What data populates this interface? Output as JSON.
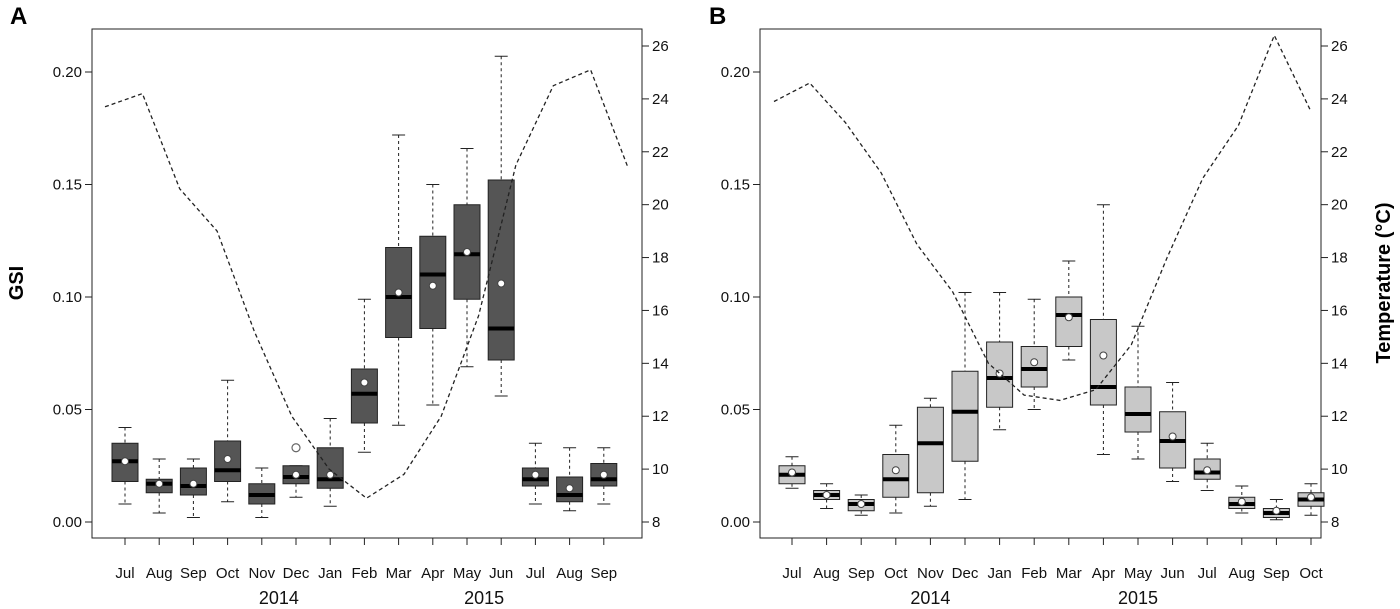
{
  "chart_data": [
    {
      "type": "box",
      "panel_label": "A",
      "ylabel": "GSI",
      "y2label": "",
      "ylim": [
        0,
        0.22
      ],
      "yticks": [
        "0.00",
        "0.05",
        "0.10",
        "0.15",
        "0.20"
      ],
      "y2lim": [
        7.3,
        26.8
      ],
      "y2ticks": [
        "8",
        "10",
        "12",
        "14",
        "16",
        "18",
        "20",
        "22",
        "24",
        "26"
      ],
      "box_color": "#555555",
      "categories": [
        "Jul",
        "Aug",
        "Sep",
        "Oct",
        "Nov",
        "Dec",
        "Jan",
        "Feb",
        "Mar",
        "Apr",
        "May",
        "Jun",
        "Jul",
        "Aug",
        "Sep"
      ],
      "years": [
        {
          "label": "2014",
          "center_index": 4.5
        },
        {
          "label": "2015",
          "center_index": 10.5
        }
      ],
      "boxes": [
        {
          "min": 0.008,
          "q1": 0.018,
          "median": 0.027,
          "q3": 0.035,
          "max": 0.042,
          "mean": 0.027
        },
        {
          "min": 0.004,
          "q1": 0.013,
          "median": 0.017,
          "q3": 0.019,
          "max": 0.028,
          "mean": 0.017
        },
        {
          "min": 0.002,
          "q1": 0.012,
          "median": 0.016,
          "q3": 0.024,
          "max": 0.028,
          "mean": 0.017
        },
        {
          "min": 0.009,
          "q1": 0.018,
          "median": 0.023,
          "q3": 0.036,
          "max": 0.063,
          "mean": 0.028
        },
        {
          "min": 0.002,
          "q1": 0.008,
          "median": 0.012,
          "q3": 0.017,
          "max": 0.024,
          "mean": null
        },
        {
          "min": 0.011,
          "q1": 0.017,
          "median": 0.02,
          "q3": 0.025,
          "max": 0.025,
          "mean": 0.021,
          "outliers": [
            0.033
          ]
        },
        {
          "min": 0.007,
          "q1": 0.015,
          "median": 0.019,
          "q3": 0.033,
          "max": 0.046,
          "mean": 0.021
        },
        {
          "min": 0.031,
          "q1": 0.044,
          "median": 0.057,
          "q3": 0.068,
          "max": 0.099,
          "mean": 0.062
        },
        {
          "min": 0.043,
          "q1": 0.082,
          "median": 0.1,
          "q3": 0.122,
          "max": 0.172,
          "mean": 0.102
        },
        {
          "min": 0.052,
          "q1": 0.086,
          "median": 0.11,
          "q3": 0.127,
          "max": 0.15,
          "mean": 0.105
        },
        {
          "min": 0.069,
          "q1": 0.099,
          "median": 0.119,
          "q3": 0.141,
          "max": 0.166,
          "mean": 0.12
        },
        {
          "min": 0.056,
          "q1": 0.072,
          "median": 0.086,
          "q3": 0.152,
          "max": 0.207,
          "mean": 0.106
        },
        {
          "min": 0.008,
          "q1": 0.016,
          "median": 0.019,
          "q3": 0.024,
          "max": 0.035,
          "mean": 0.021
        },
        {
          "min": 0.005,
          "q1": 0.009,
          "median": 0.012,
          "q3": 0.02,
          "max": 0.033,
          "mean": 0.015
        },
        {
          "min": 0.008,
          "q1": 0.016,
          "median": 0.019,
          "q3": 0.026,
          "max": 0.033,
          "mean": 0.021
        }
      ],
      "temperature": {
        "x": [
          0,
          1,
          2,
          3,
          4,
          5,
          6,
          7,
          8,
          9,
          10,
          11,
          12,
          13,
          14
        ],
        "values": [
          23.7,
          24.2,
          20.6,
          19.0,
          15.2,
          12.0,
          10.0,
          8.9,
          9.8,
          12.0,
          15.8,
          21.5,
          24.5,
          25.1,
          21.4
        ]
      }
    },
    {
      "type": "box",
      "panel_label": "B",
      "ylabel": "",
      "y2label": "Temperature (°C)",
      "ylim": [
        0,
        0.22
      ],
      "yticks": [
        "0.00",
        "0.05",
        "0.10",
        "0.15",
        "0.20"
      ],
      "y2lim": [
        7.3,
        26.8
      ],
      "y2ticks": [
        "8",
        "10",
        "12",
        "14",
        "16",
        "18",
        "20",
        "22",
        "24",
        "26"
      ],
      "box_color": "#c8c8c8",
      "categories": [
        "Jul",
        "Aug",
        "Sep",
        "Oct",
        "Nov",
        "Dec",
        "Jan",
        "Feb",
        "Mar",
        "Apr",
        "May",
        "Jun",
        "Jul",
        "Aug",
        "Sep",
        "Oct"
      ],
      "years": [
        {
          "label": "2014",
          "center_index": 4
        },
        {
          "label": "2015",
          "center_index": 10
        }
      ],
      "boxes": [
        {
          "min": 0.015,
          "q1": 0.017,
          "median": 0.021,
          "q3": 0.025,
          "max": 0.029,
          "mean": 0.022
        },
        {
          "min": 0.006,
          "q1": 0.01,
          "median": 0.012,
          "q3": 0.014,
          "max": 0.017,
          "mean": 0.012
        },
        {
          "min": 0.003,
          "q1": 0.005,
          "median": 0.008,
          "q3": 0.01,
          "max": 0.012,
          "mean": 0.008
        },
        {
          "min": 0.004,
          "q1": 0.011,
          "median": 0.019,
          "q3": 0.03,
          "max": 0.043,
          "mean": 0.023
        },
        {
          "min": 0.007,
          "q1": 0.013,
          "median": 0.035,
          "q3": 0.051,
          "max": 0.055,
          "mean": null
        },
        {
          "min": 0.01,
          "q1": 0.027,
          "median": 0.049,
          "q3": 0.067,
          "max": 0.102,
          "mean": null
        },
        {
          "min": 0.041,
          "q1": 0.051,
          "median": 0.064,
          "q3": 0.08,
          "max": 0.102,
          "mean": 0.066
        },
        {
          "min": 0.05,
          "q1": 0.06,
          "median": 0.068,
          "q3": 0.078,
          "max": 0.099,
          "mean": 0.071
        },
        {
          "min": 0.072,
          "q1": 0.078,
          "median": 0.092,
          "q3": 0.1,
          "max": 0.116,
          "mean": 0.091
        },
        {
          "min": 0.03,
          "q1": 0.052,
          "median": 0.06,
          "q3": 0.09,
          "max": 0.141,
          "mean": 0.074
        },
        {
          "min": 0.028,
          "q1": 0.04,
          "median": 0.048,
          "q3": 0.06,
          "max": 0.087,
          "mean": null
        },
        {
          "min": 0.018,
          "q1": 0.024,
          "median": 0.036,
          "q3": 0.049,
          "max": 0.062,
          "mean": 0.038
        },
        {
          "min": 0.014,
          "q1": 0.019,
          "median": 0.022,
          "q3": 0.028,
          "max": 0.035,
          "mean": 0.023
        },
        {
          "min": 0.004,
          "q1": 0.006,
          "median": 0.008,
          "q3": 0.011,
          "max": 0.016,
          "mean": 0.009
        },
        {
          "min": 0.001,
          "q1": 0.002,
          "median": 0.004,
          "q3": 0.006,
          "max": 0.01,
          "mean": 0.005
        },
        {
          "min": 0.003,
          "q1": 0.007,
          "median": 0.01,
          "q3": 0.013,
          "max": 0.017,
          "mean": 0.011
        }
      ],
      "temperature": {
        "x": [
          0,
          1,
          2,
          3,
          4,
          5,
          6,
          7,
          8,
          9,
          10,
          11,
          12,
          13,
          14,
          15
        ],
        "values": [
          23.9,
          24.6,
          23.1,
          21.2,
          18.5,
          16.7,
          14.0,
          12.8,
          12.6,
          13.0,
          14.7,
          18.0,
          21.0,
          23.0,
          26.4,
          23.6
        ]
      }
    }
  ]
}
